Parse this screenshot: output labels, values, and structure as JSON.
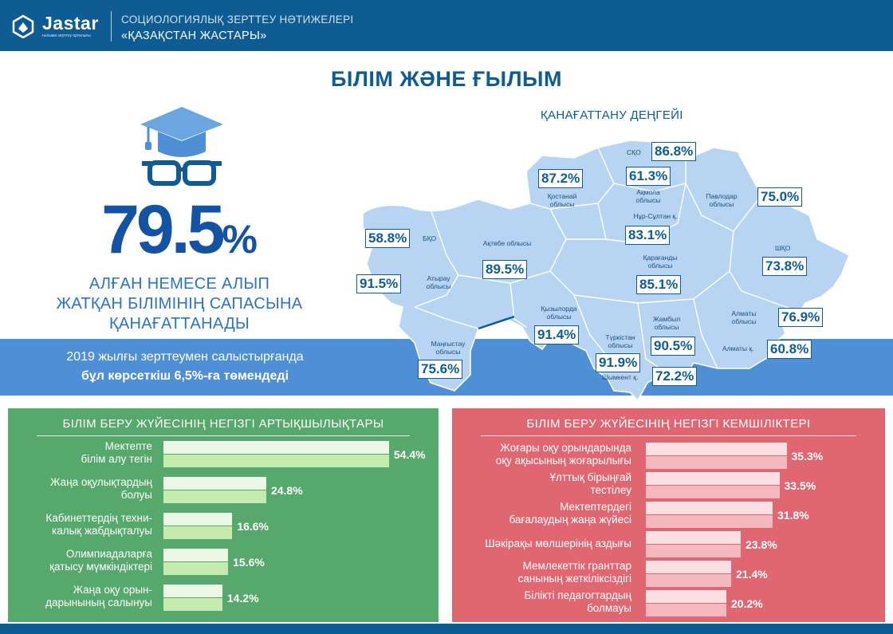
{
  "header": {
    "logo_text": "Jastar",
    "logo_sub": "ғылыми зерттеу орталығы",
    "line1": "СОЦИОЛОГИЯЛЫҚ ЗЕРТТЕУ НӘТИЖЕЛЕРІ",
    "line2": "«ҚАЗАҚСТАН ЖАСТАРЫ»"
  },
  "main_title": "БІЛІМ ЖӘНЕ ҒЫЛЫМ",
  "headline": {
    "value": "79.5",
    "unit": "%",
    "caption_1": "АЛҒАН НЕМЕСЕ АЛЫП",
    "caption_2": "ЖАТҚАН БІЛІМІНІҢ САПАСЫНА",
    "caption_3": "ҚАНАҒАТТАНАДЫ"
  },
  "comparison": {
    "line1": "2019 жылғы зерттеумен салыстырғанда",
    "line2": "бұл көрсеткіш 6,5%-ға төмендеді"
  },
  "chart_data": [
    {
      "type": "map",
      "title": "ҚАНАҒАТТАНУ ДЕҢГЕЙІ",
      "regions": [
        {
          "name": "СҚО",
          "value": 86.8,
          "label": "86.8%"
        },
        {
          "name": "Қостанай облысы",
          "value": 87.2,
          "label": "87.2%"
        },
        {
          "name": "Ақмола облысы",
          "value": 61.3,
          "label": "61.3%"
        },
        {
          "name": "Павлодар облысы",
          "value": 75.0,
          "label": "75.0%"
        },
        {
          "name": "Нұр-Сұлтан қ.",
          "value": 83.1,
          "label": "83.1%"
        },
        {
          "name": "БҚО",
          "value": 58.8,
          "label": "58.8%"
        },
        {
          "name": "Ақтөбе облысы",
          "value": 89.5,
          "label": "89.5%"
        },
        {
          "name": "ШҚО",
          "value": 73.8,
          "label": "73.8%"
        },
        {
          "name": "Атырау облысы",
          "value": 91.5,
          "label": "91.5%"
        },
        {
          "name": "Қарағанды облысы",
          "value": 85.1,
          "label": "85.1%"
        },
        {
          "name": "Қызылорда облысы",
          "value": 91.4,
          "label": "91.4%"
        },
        {
          "name": "Алматы облысы",
          "value": 76.9,
          "label": "76.9%"
        },
        {
          "name": "Маңғыстау облысы",
          "value": 75.6,
          "label": "75.6%"
        },
        {
          "name": "Жамбыл облысы",
          "value": 90.5,
          "label": "90.5%"
        },
        {
          "name": "Алматы қ.",
          "value": 60.8,
          "label": "60.8%"
        },
        {
          "name": "Түркістан облысы",
          "value": 91.9,
          "label": "91.9%"
        },
        {
          "name": "Шымкент қ.",
          "value": 72.2,
          "label": "72.2%"
        }
      ]
    },
    {
      "type": "bar",
      "title": "БІЛІМ БЕРУ ЖҮЙЕСІНІҢ НЕГІЗГІ АРТЫҚШЫЛЫҚТАРЫ",
      "categories": [
        [
          "Мектепте",
          "білім алу тегін"
        ],
        [
          "Жаңа оқулықтардың",
          "болуы"
        ],
        [
          "Кабинеттердің техни-",
          "калық жабдықталуы"
        ],
        [
          "Олимпиадаларға",
          "қатысу мүмкіндіктері"
        ],
        [
          "Жаңа оқу орын-",
          "дарынының салынуы"
        ]
      ],
      "values": [
        54.4,
        24.8,
        16.6,
        15.6,
        14.2
      ],
      "labels": [
        "54.4%",
        "24.8%",
        "16.6%",
        "15.6%",
        "14.2%"
      ],
      "color": "#57a86c"
    },
    {
      "type": "bar",
      "title": "БІЛІМ БЕРУ ЖҮЙЕСІНІҢ НЕГІЗГІ КЕМШІЛІКТЕРІ",
      "categories": [
        [
          "Жоғары оқу орындарында",
          "оқу ақысының жоғарылығы"
        ],
        [
          "Ұлттық бірыңғай",
          "тестілеу"
        ],
        [
          "Мектептердегі",
          "бағалаудың жаңа жүйесі"
        ],
        [
          "Шәкірақы мөлшерінің аздығы"
        ],
        [
          "Мемлекеттік гранттар",
          "санының жеткіліксіздігі"
        ],
        [
          "Білікті педагогтардың",
          "болмауы"
        ]
      ],
      "values": [
        35.3,
        33.5,
        31.8,
        23.8,
        21.4,
        20.2
      ],
      "labels": [
        "35.3%",
        "33.5%",
        "31.8%",
        "23.8%",
        "21.4%",
        "20.2%"
      ],
      "color": "#e06672"
    }
  ]
}
